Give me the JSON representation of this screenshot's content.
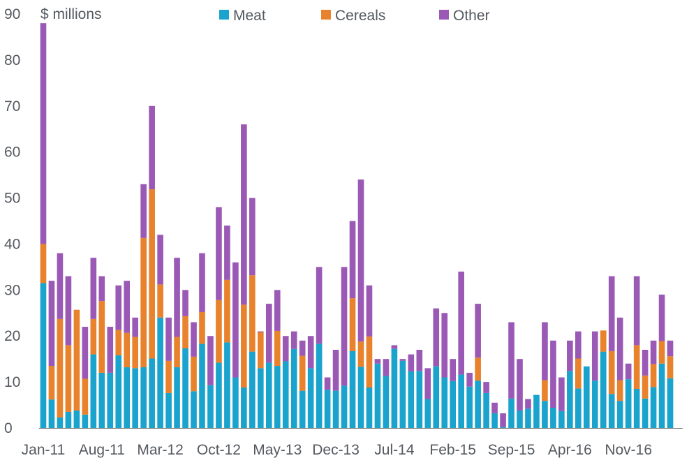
{
  "chart_data": {
    "type": "bar",
    "stacked": true,
    "ylabel": "$ millions",
    "ylim": [
      0,
      90
    ],
    "yticks": [
      0,
      10,
      20,
      30,
      40,
      50,
      60,
      70,
      80,
      90
    ],
    "x_tick_labels": [
      "Jan-11",
      "Aug-11",
      "Mar-12",
      "Oct-12",
      "May-13",
      "Dec-13",
      "Jul-14",
      "Feb-15",
      "Sep-15",
      "Apr-16",
      "Nov-16"
    ],
    "x_tick_every": 7,
    "grid": false,
    "legend_position": "top",
    "colors": {
      "Meat": "#1aa3cc",
      "Cereals": "#e8822c",
      "Other": "#9b59b6"
    },
    "categories": [
      "Jan-11",
      "Feb-11",
      "Mar-11",
      "Apr-11",
      "May-11",
      "Jun-11",
      "Jul-11",
      "Aug-11",
      "Sep-11",
      "Oct-11",
      "Nov-11",
      "Dec-11",
      "Jan-12",
      "Feb-12",
      "Mar-12",
      "Apr-12",
      "May-12",
      "Jun-12",
      "Jul-12",
      "Aug-12",
      "Sep-12",
      "Oct-12",
      "Nov-12",
      "Dec-12",
      "Jan-13",
      "Feb-13",
      "Mar-13",
      "Apr-13",
      "May-13",
      "Jun-13",
      "Jul-13",
      "Aug-13",
      "Sep-13",
      "Oct-13",
      "Nov-13",
      "Dec-13",
      "Jan-14",
      "Feb-14",
      "Mar-14",
      "Apr-14",
      "May-14",
      "Jun-14",
      "Jul-14",
      "Aug-14",
      "Sep-14",
      "Oct-14",
      "Nov-14",
      "Dec-14",
      "Jan-15",
      "Feb-15",
      "Mar-15",
      "Apr-15",
      "May-15",
      "Jun-15",
      "Jul-15",
      "Aug-15",
      "Sep-15",
      "Oct-15",
      "Nov-15",
      "Dec-15",
      "Jan-16",
      "Feb-16",
      "Mar-16",
      "Apr-16",
      "May-16",
      "Jun-16",
      "Jul-16",
      "Aug-16",
      "Sep-16",
      "Oct-16",
      "Nov-16",
      "Dec-16",
      "Jan-17",
      "Feb-17",
      "Mar-17",
      "Apr-17",
      "May-17"
    ],
    "series": [
      {
        "name": "Meat",
        "values": [
          31.5,
          6.2,
          2.3,
          3.5,
          3.8,
          2.9,
          16,
          12,
          12,
          15.8,
          13.2,
          13,
          13.2,
          15.1,
          24,
          7.6,
          13.2,
          17.3,
          8,
          18.3,
          9.3,
          14.2,
          18.6,
          11,
          8.8,
          16.6,
          13,
          14.2,
          13.5,
          14.5,
          17.2,
          8.1,
          13,
          18.3,
          8.3,
          8.1,
          9.2,
          16.7,
          13.3,
          8.8,
          14,
          11.3,
          17.2,
          14.6,
          12.3,
          12.4,
          6.3,
          13.4,
          11,
          10.2,
          11.6,
          9,
          10.3,
          7.6,
          3.2,
          0.2,
          6.4,
          3.8,
          4.2,
          7.2,
          5.9,
          4.4,
          3.7,
          12.4,
          8.6,
          13.4,
          10.3,
          16.6,
          7.4,
          5.9,
          10.6,
          8.5,
          6.4,
          8.9,
          14,
          10.8,
          0
        ]
      },
      {
        "name": "Cereals",
        "values": [
          8.5,
          7.3,
          21.4,
          14.5,
          21.9,
          7.8,
          7.7,
          15.6,
          0,
          5.5,
          7.5,
          6.8,
          28.1,
          36.8,
          7.2,
          7,
          6.6,
          7,
          7.5,
          6.9,
          0,
          13.6,
          13.6,
          0,
          18,
          16.6,
          7.8,
          0,
          7.6,
          0,
          0,
          7.6,
          0,
          0,
          0,
          0,
          0,
          11.5,
          5.5,
          11.1,
          0,
          0,
          0,
          0,
          0,
          0,
          0,
          0,
          0,
          0,
          0,
          0,
          5,
          0,
          0,
          0,
          0,
          0,
          0,
          0,
          4.5,
          0,
          0,
          0,
          6.5,
          0,
          0,
          4.6,
          9.3,
          4.5,
          0,
          9.5,
          5,
          5,
          4.9,
          4.8,
          0
        ]
      },
      {
        "name": "Other",
        "values": [
          48,
          18.5,
          14.3,
          15,
          0,
          11.3,
          13.3,
          5.4,
          10,
          9.7,
          11.3,
          4.2,
          11.7,
          18.1,
          10.8,
          9.4,
          17.2,
          5.7,
          7.5,
          12.8,
          10.7,
          20.2,
          11.8,
          25,
          39.2,
          16.8,
          0.2,
          12.8,
          8.9,
          5.5,
          3.8,
          3.3,
          7,
          16.7,
          2.7,
          8.9,
          25.8,
          16.8,
          35.2,
          11.1,
          1,
          3.7,
          0.8,
          0.4,
          3.7,
          4.6,
          6.7,
          12.6,
          14,
          4.8,
          22.4,
          3,
          11.7,
          2.4,
          2.3,
          3,
          16.6,
          11.2,
          2.1,
          0,
          12.6,
          14.6,
          7.3,
          6.6,
          5.9,
          0,
          10.7,
          0,
          16.3,
          13.6,
          3.4,
          15,
          5.6,
          5.1,
          10.1,
          3.4,
          0
        ]
      }
    ]
  }
}
